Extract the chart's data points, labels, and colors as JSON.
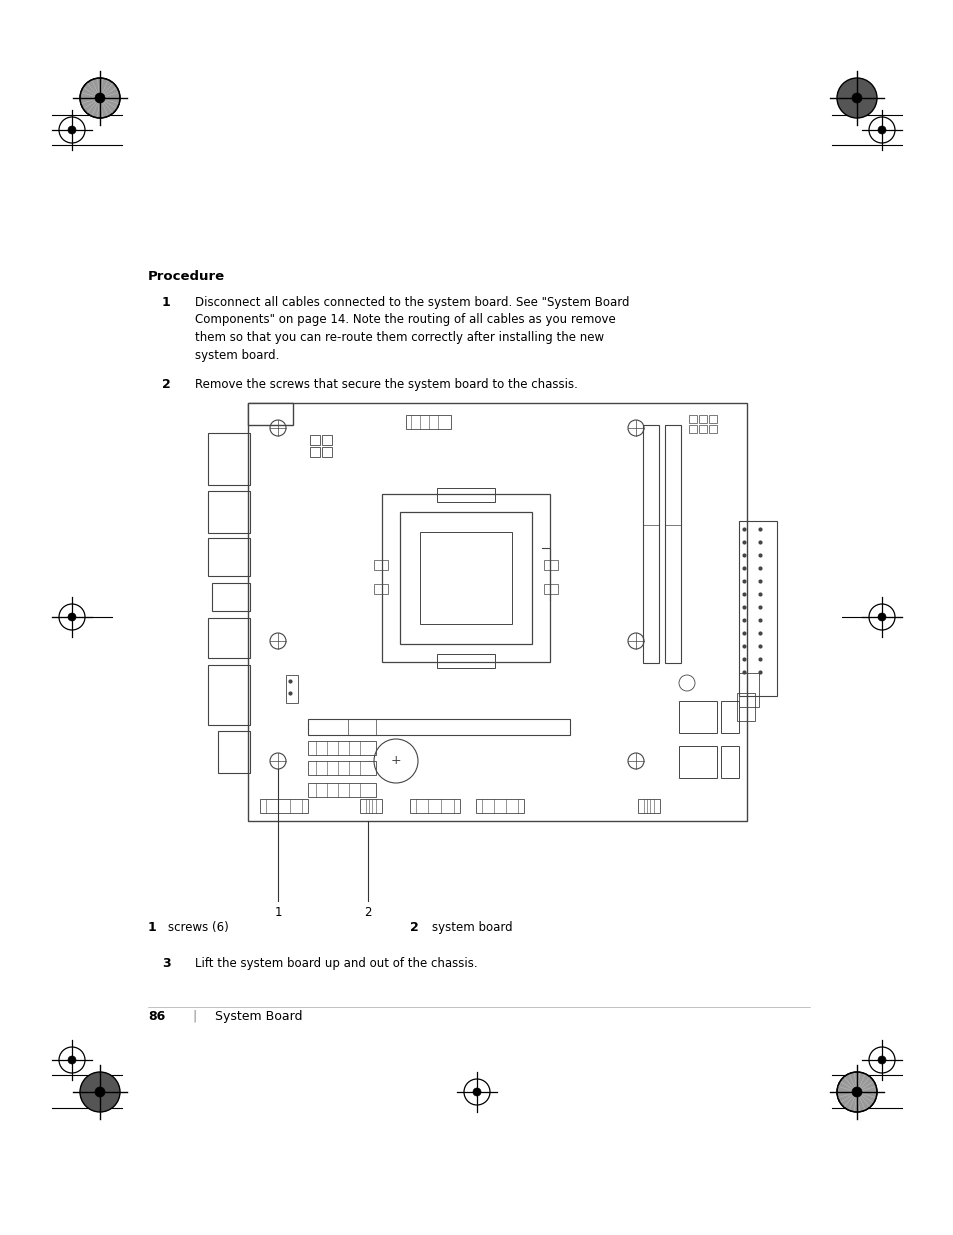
{
  "background_color": "#ffffff",
  "page_width": 9.54,
  "page_height": 12.35,
  "title": "Procedure",
  "step1_bold": "1",
  "step1_text": "Disconnect all cables connected to the system board. See \"System Board\nComponents\" on page 14. Note the routing of all cables as you remove\nthem so that you can re-route them correctly after installing the new\nsystem board.",
  "step2_bold": "2",
  "step2_text": "Remove the screws that secure the system board to the chassis.",
  "step3_bold": "3",
  "step3_text": "Lift the system board up and out of the chassis.",
  "label1_num": "1",
  "label1_text": "screws (6)",
  "label2_num": "2",
  "label2_text": "system board",
  "footer_page": "86",
  "footer_sep": "|",
  "footer_text": "System Board",
  "text_color": "#000000",
  "reg_mark_color": "#000000"
}
